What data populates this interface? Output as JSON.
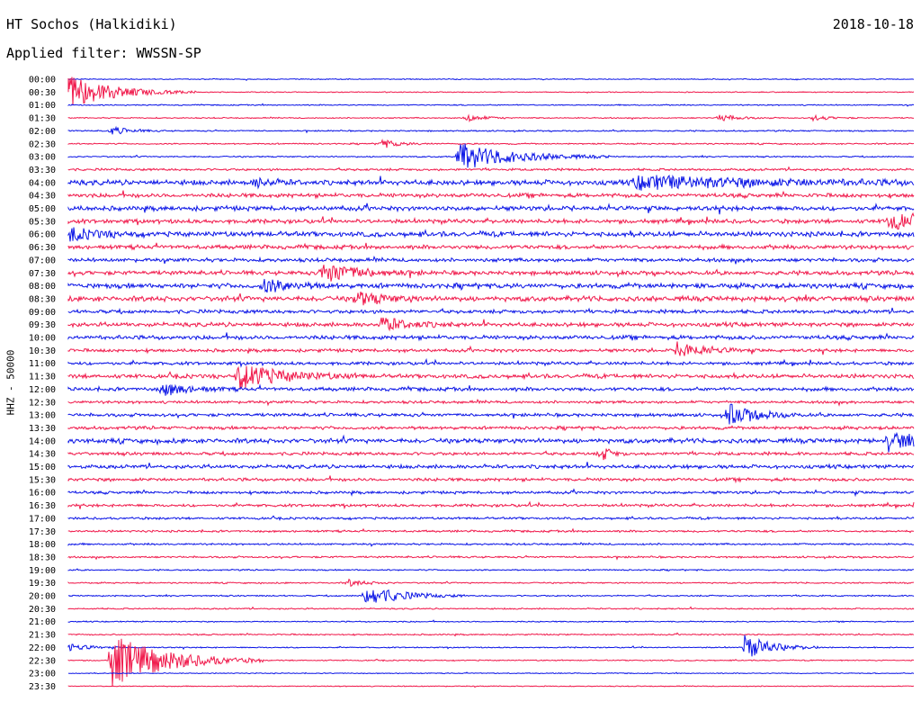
{
  "header": {
    "station": "HT Sochos (Halkidiki)",
    "date": "2018-10-18",
    "filter": "Applied filter: WWSSN-SP"
  },
  "channel_label": "HHZ - 50000",
  "colors": {
    "trace_blue": "#0a14e6",
    "trace_red": "#f0194b",
    "background": "#ffffff",
    "text": "#000000"
  },
  "time_labels": [
    "00:00",
    "00:30",
    "01:00",
    "01:30",
    "02:00",
    "02:30",
    "03:00",
    "03:30",
    "04:00",
    "04:30",
    "05:00",
    "05:30",
    "06:00",
    "06:30",
    "07:00",
    "07:30",
    "08:00",
    "08:30",
    "09:00",
    "09:30",
    "10:00",
    "10:30",
    "11:00",
    "11:30",
    "12:00",
    "12:30",
    "13:00",
    "13:30",
    "14:00",
    "14:30",
    "15:00",
    "15:30",
    "16:00",
    "16:30",
    "17:00",
    "17:30",
    "18:00",
    "18:30",
    "19:00",
    "19:30",
    "20:00",
    "20:30",
    "21:00",
    "21:30",
    "22:00",
    "22:30",
    "23:00",
    "23:30"
  ],
  "noise_level": [
    0.4,
    0.4,
    0.5,
    0.5,
    0.6,
    0.6,
    0.6,
    1.0,
    2.2,
    1.8,
    2.0,
    1.8,
    2.2,
    1.8,
    1.6,
    1.8,
    2.2,
    2.2,
    1.6,
    1.8,
    1.8,
    1.4,
    1.4,
    1.8,
    1.6,
    1.2,
    1.4,
    1.4,
    2.0,
    1.4,
    1.6,
    1.4,
    1.2,
    1.2,
    1.0,
    0.9,
    0.8,
    0.8,
    0.6,
    0.6,
    0.6,
    0.6,
    0.5,
    0.6,
    0.5,
    0.5,
    0.4,
    0.4
  ],
  "events": [
    {
      "row": 1,
      "t": 0.0,
      "amp": 18,
      "dur": 0.05
    },
    {
      "row": 3,
      "t": 0.47,
      "amp": 4,
      "dur": 0.02
    },
    {
      "row": 3,
      "t": 0.77,
      "amp": 4,
      "dur": 0.02
    },
    {
      "row": 3,
      "t": 0.88,
      "amp": 3,
      "dur": 0.02
    },
    {
      "row": 4,
      "t": 0.05,
      "amp": 5,
      "dur": 0.02
    },
    {
      "row": 5,
      "t": 0.37,
      "amp": 5,
      "dur": 0.02
    },
    {
      "row": 6,
      "t": 0.46,
      "amp": 16,
      "dur": 0.06
    },
    {
      "row": 8,
      "t": 0.22,
      "amp": 5,
      "dur": 0.02
    },
    {
      "row": 8,
      "t": 0.67,
      "amp": 7,
      "dur": 0.15
    },
    {
      "row": 11,
      "t": 0.97,
      "amp": 9,
      "dur": 0.04
    },
    {
      "row": 12,
      "t": 0.0,
      "amp": 7,
      "dur": 0.03
    },
    {
      "row": 15,
      "t": 0.3,
      "amp": 12,
      "dur": 0.04
    },
    {
      "row": 16,
      "t": 0.23,
      "amp": 8,
      "dur": 0.03
    },
    {
      "row": 17,
      "t": 0.34,
      "amp": 8,
      "dur": 0.03
    },
    {
      "row": 19,
      "t": 0.37,
      "amp": 8,
      "dur": 0.03
    },
    {
      "row": 21,
      "t": 0.72,
      "amp": 9,
      "dur": 0.03
    },
    {
      "row": 23,
      "t": 0.2,
      "amp": 14,
      "dur": 0.05
    },
    {
      "row": 24,
      "t": 0.11,
      "amp": 7,
      "dur": 0.03
    },
    {
      "row": 26,
      "t": 0.78,
      "amp": 13,
      "dur": 0.03
    },
    {
      "row": 28,
      "t": 0.97,
      "amp": 10,
      "dur": 0.03
    },
    {
      "row": 29,
      "t": 0.63,
      "amp": 9,
      "dur": 0.01
    },
    {
      "row": 39,
      "t": 0.33,
      "amp": 4,
      "dur": 0.02
    },
    {
      "row": 40,
      "t": 0.35,
      "amp": 12,
      "dur": 0.04
    },
    {
      "row": 44,
      "t": 0.0,
      "amp": 5,
      "dur": 0.02
    },
    {
      "row": 44,
      "t": 0.8,
      "amp": 14,
      "dur": 0.03
    },
    {
      "row": 45,
      "t": 0.05,
      "amp": 30,
      "dur": 0.06
    }
  ]
}
